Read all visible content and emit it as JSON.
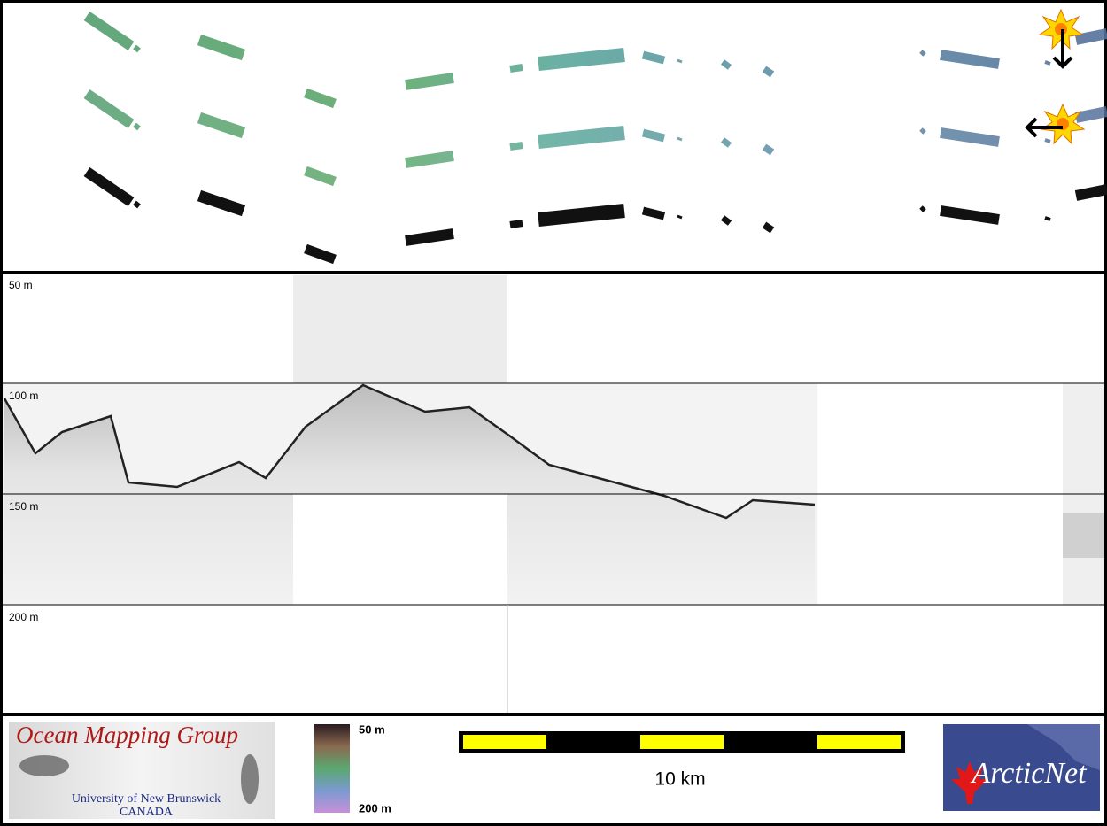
{
  "profile": {
    "depth_labels": [
      "50 m",
      "100 m",
      "150 m",
      "200 m"
    ]
  },
  "legend": {
    "logo": {
      "title": "Ocean Mapping Group",
      "university": "University of New Brunswick",
      "country": "CANADA"
    },
    "color_bar": {
      "top_label": "50 m",
      "bottom_label": "200 m"
    },
    "scale_bar": {
      "label": "10 km"
    },
    "partner_logo": {
      "name": "ArcticNet"
    }
  }
}
